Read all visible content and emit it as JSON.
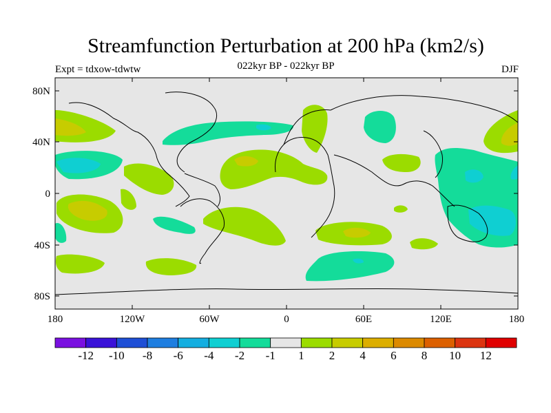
{
  "title": "Streamfunction Perturbation at 200 hPa (km2/s)",
  "subtitle_left": "Expt = tdxow-tdwtw",
  "subtitle_center": "022kyr BP - 022kyr BP",
  "subtitle_right": "DJF",
  "map": {
    "lat_ticks": [
      "80N",
      "40N",
      "0",
      "40S",
      "80S"
    ],
    "lon_ticks": [
      "180",
      "120W",
      "60W",
      "0",
      "60E",
      "120E",
      "180"
    ],
    "ocean_color": "#e6e6e6"
  },
  "colorbar": {
    "colors": [
      "#7a10e0",
      "#3a12d8",
      "#1e4fd6",
      "#1e7ee0",
      "#14aee0",
      "#0fcfd2",
      "#14dc9a",
      "#e6e6e6",
      "#9bdc00",
      "#c7cc00",
      "#dcae00",
      "#dc8a00",
      "#dc6000",
      "#dc3410",
      "#e00000"
    ],
    "labels": [
      "-12",
      "-10",
      "-8",
      "-6",
      "-4",
      "-2",
      "-1",
      "1",
      "2",
      "4",
      "6",
      "8",
      "10",
      "12"
    ]
  }
}
